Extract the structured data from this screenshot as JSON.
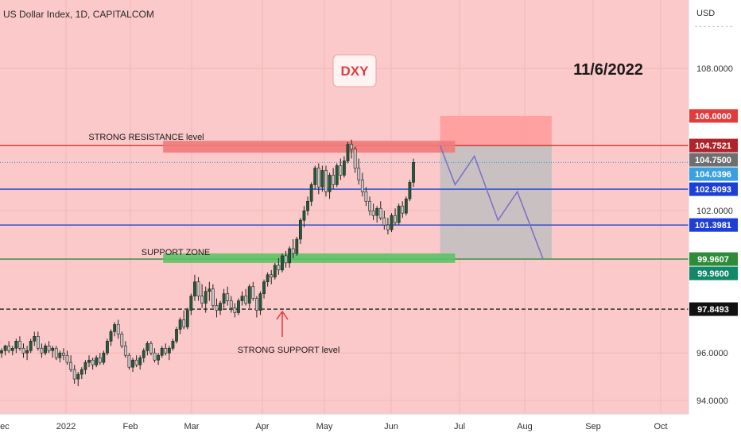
{
  "header": {
    "symbol_title": "US Dollar Index, 1D, CAPITALCOM",
    "currency": "USD"
  },
  "annotations": {
    "ticker_box": "DXY",
    "date_text": "11/6/2022",
    "resistance_label": "STRONG RESISTANCE level",
    "support_zone_label": "SUPPORT ZONE",
    "strong_support_label": "STRONG SUPPORT level"
  },
  "colors": {
    "background": "#fbc9c9",
    "bull_candle": "#1f5c3a",
    "bear_candle": "#c9c9c9",
    "resistance_line": "#d0302f",
    "blue_line": "#1e3fd6",
    "green_line": "#2e8b3a",
    "target_box": "#bfbfbf",
    "stop_box": "#ff9a9a",
    "path": "#7e72c8"
  },
  "chart_data": {
    "type": "candlestick",
    "title": "US Dollar Index, 1D, CAPITALCOM",
    "y_axis_unit": "USD",
    "ylim": [
      93.5,
      111
    ],
    "y_ticks": [
      {
        "value": 108,
        "label": "108.0000"
      },
      {
        "value": 102,
        "label": "102.0000"
      },
      {
        "value": 96,
        "label": "96.0000"
      },
      {
        "value": 94,
        "label": "94.0000"
      }
    ],
    "x_ticks": [
      "Dec",
      "2022",
      "Feb",
      "Mar",
      "Apr",
      "May",
      "Jun",
      "Jul",
      "Aug",
      "Sep",
      "Oct"
    ],
    "horizontal_levels": [
      {
        "name": "resistance",
        "value": 104.75,
        "style": "solid",
        "color": "#d0302f"
      },
      {
        "name": "last-price",
        "value": 104.0396,
        "style": "dotted",
        "color": "#3aa0e0"
      },
      {
        "name": "blue-upper",
        "value": 102.9093,
        "style": "solid",
        "color": "#1e3fd6"
      },
      {
        "name": "blue-lower",
        "value": 101.3981,
        "style": "solid",
        "color": "#1e3fd6"
      },
      {
        "name": "support",
        "value": 99.9607,
        "style": "solid",
        "color": "#2e8b3a"
      },
      {
        "name": "black-dashed",
        "value": 97.8493,
        "style": "dashed",
        "color": "#222222"
      }
    ],
    "price_labels": [
      {
        "label": "106.0000",
        "value": 106.0,
        "bg": "#e23b3b",
        "fg": "#ffffff"
      },
      {
        "label": "104.7521",
        "value": 104.7521,
        "bg": "#b0232a",
        "fg": "#ffffff"
      },
      {
        "label": "104.7500",
        "value": 104.75,
        "bg": "#6f6f6f",
        "fg": "#ffffff"
      },
      {
        "label": "104.0396",
        "value": 104.0396,
        "bg": "#3aa0e0",
        "fg": "#ffffff"
      },
      {
        "label": "102.9093",
        "value": 102.9093,
        "bg": "#1e3fd6",
        "fg": "#ffffff"
      },
      {
        "label": "101.3981",
        "value": 101.3981,
        "bg": "#1e3fd6",
        "fg": "#ffffff"
      },
      {
        "label": "99.9607",
        "value": 99.9607,
        "bg": "#2e8b3a",
        "fg": "#ffffff"
      },
      {
        "label": "99.9600",
        "value": 99.96,
        "bg": "#13876a",
        "fg": "#ffffff"
      },
      {
        "label": "97.8493",
        "value": 97.8493,
        "bg": "#111111",
        "fg": "#ffffff"
      }
    ],
    "zones": [
      {
        "name": "resistance-zone",
        "from_day": 76,
        "to_day": 212,
        "low": 104.45,
        "high": 104.95,
        "color": "#f07a7a"
      },
      {
        "name": "support-zone",
        "from_day": 76,
        "to_day": 212,
        "low": 99.8,
        "high": 100.2,
        "color": "#5cc267"
      }
    ],
    "position_box": {
      "from_day": 205,
      "to_day": 257,
      "entry": 104.75,
      "stop": 106.0,
      "target": 99.96
    },
    "projection_path": [
      {
        "day": 205,
        "price": 104.75
      },
      {
        "day": 212,
        "price": 103.1
      },
      {
        "day": 221,
        "price": 104.3
      },
      {
        "day": 232,
        "price": 101.6
      },
      {
        "day": 241,
        "price": 102.8
      },
      {
        "day": 253,
        "price": 99.96
      }
    ],
    "candles": {
      "start_day": 0,
      "note": "OHLC per trading day, day 0 = 2021-11-20",
      "ohlc": [
        [
          96.0,
          96.2,
          95.8,
          96.1
        ],
        [
          96.1,
          96.35,
          95.9,
          96.3
        ],
        [
          96.3,
          96.5,
          96.0,
          96.1
        ],
        [
          96.1,
          96.3,
          95.9,
          96.2
        ],
        [
          96.2,
          96.6,
          96.0,
          96.5
        ],
        [
          96.5,
          96.7,
          96.1,
          96.2
        ],
        [
          96.2,
          96.4,
          95.8,
          96.0
        ],
        [
          96.0,
          96.3,
          95.7,
          96.1
        ],
        [
          96.1,
          96.6,
          96.0,
          96.5
        ],
        [
          96.5,
          96.9,
          96.3,
          96.7
        ],
        [
          96.7,
          96.9,
          96.1,
          96.2
        ],
        [
          96.2,
          96.4,
          95.8,
          96.0
        ],
        [
          96.0,
          96.4,
          95.9,
          96.3
        ],
        [
          96.3,
          96.5,
          96.0,
          96.1
        ],
        [
          96.1,
          96.3,
          95.8,
          96.2
        ],
        [
          96.2,
          96.3,
          95.7,
          95.8
        ],
        [
          95.8,
          96.1,
          95.6,
          96.0
        ],
        [
          96.0,
          96.2,
          95.7,
          95.9
        ],
        [
          95.9,
          96.1,
          95.5,
          95.6
        ],
        [
          95.6,
          95.9,
          95.2,
          95.3
        ],
        [
          95.3,
          95.5,
          94.7,
          94.9
        ],
        [
          94.9,
          95.2,
          94.6,
          95.1
        ],
        [
          95.1,
          95.4,
          94.9,
          95.3
        ],
        [
          95.3,
          95.7,
          95.1,
          95.6
        ],
        [
          95.6,
          95.9,
          95.4,
          95.7
        ],
        [
          95.7,
          95.8,
          95.3,
          95.5
        ],
        [
          95.5,
          95.9,
          95.4,
          95.8
        ],
        [
          95.8,
          96.0,
          95.5,
          95.6
        ],
        [
          95.6,
          96.1,
          95.5,
          96.0
        ],
        [
          96.0,
          96.6,
          95.9,
          96.5
        ],
        [
          96.5,
          97.0,
          96.3,
          96.9
        ],
        [
          96.9,
          97.3,
          96.7,
          97.2
        ],
        [
          97.2,
          97.4,
          96.6,
          96.8
        ],
        [
          96.8,
          96.9,
          96.2,
          96.3
        ],
        [
          96.3,
          96.5,
          95.8,
          95.9
        ],
        [
          95.9,
          96.0,
          95.3,
          95.4
        ],
        [
          95.4,
          95.8,
          95.2,
          95.7
        ],
        [
          95.7,
          95.9,
          95.4,
          95.5
        ],
        [
          95.5,
          95.9,
          95.3,
          95.8
        ],
        [
          95.8,
          96.2,
          95.6,
          96.1
        ],
        [
          96.1,
          96.5,
          95.9,
          96.4
        ],
        [
          96.4,
          96.5,
          95.9,
          96.0
        ],
        [
          96.0,
          96.2,
          95.6,
          95.7
        ],
        [
          95.7,
          96.0,
          95.5,
          95.9
        ],
        [
          95.9,
          96.3,
          95.8,
          96.2
        ],
        [
          96.2,
          96.4,
          95.9,
          96.0
        ],
        [
          96.0,
          96.3,
          95.7,
          96.2
        ],
        [
          96.2,
          96.6,
          96.1,
          96.5
        ],
        [
          96.5,
          97.1,
          96.4,
          97.0
        ],
        [
          97.0,
          97.5,
          96.8,
          97.4
        ],
        [
          97.4,
          97.8,
          97.0,
          97.1
        ],
        [
          97.1,
          97.9,
          97.0,
          97.8
        ],
        [
          97.8,
          98.5,
          97.6,
          98.4
        ],
        [
          98.4,
          99.3,
          98.2,
          99.0
        ],
        [
          99.0,
          99.2,
          98.2,
          98.4
        ],
        [
          98.4,
          98.9,
          97.9,
          98.1
        ],
        [
          98.1,
          98.8,
          97.7,
          98.6
        ],
        [
          98.6,
          99.0,
          98.2,
          98.7
        ],
        [
          98.7,
          98.9,
          97.9,
          98.0
        ],
        [
          98.0,
          98.3,
          97.5,
          97.8
        ],
        [
          97.8,
          98.2,
          97.6,
          98.1
        ],
        [
          98.1,
          98.7,
          97.9,
          98.5
        ],
        [
          98.5,
          98.8,
          98.0,
          98.2
        ],
        [
          98.2,
          98.4,
          97.7,
          97.9
        ],
        [
          97.9,
          98.1,
          97.5,
          97.7
        ],
        [
          97.7,
          98.3,
          97.6,
          98.2
        ],
        [
          98.2,
          98.6,
          98.0,
          98.4
        ],
        [
          98.4,
          98.7,
          98.0,
          98.1
        ],
        [
          98.1,
          98.9,
          97.9,
          98.8
        ],
        [
          98.8,
          99.0,
          98.2,
          98.3
        ],
        [
          98.3,
          98.4,
          97.5,
          97.8
        ],
        [
          97.8,
          98.6,
          97.6,
          98.5
        ],
        [
          98.5,
          99.1,
          98.3,
          99.0
        ],
        [
          99.0,
          99.4,
          98.8,
          99.3
        ],
        [
          99.3,
          99.5,
          98.9,
          99.2
        ],
        [
          99.2,
          99.8,
          99.1,
          99.7
        ],
        [
          99.7,
          100.0,
          99.3,
          99.5
        ],
        [
          99.5,
          100.2,
          99.4,
          100.1
        ],
        [
          100.1,
          100.3,
          99.6,
          99.8
        ],
        [
          99.8,
          100.5,
          99.6,
          100.4
        ],
        [
          100.4,
          100.8,
          100.0,
          100.2
        ],
        [
          100.2,
          100.9,
          100.1,
          100.8
        ],
        [
          100.8,
          101.7,
          100.6,
          101.6
        ],
        [
          101.6,
          102.2,
          101.3,
          102.0
        ],
        [
          102.0,
          102.6,
          101.8,
          102.4
        ],
        [
          102.4,
          103.2,
          102.2,
          103.1
        ],
        [
          103.1,
          103.9,
          102.9,
          103.8
        ],
        [
          103.8,
          104.0,
          102.7,
          103.0
        ],
        [
          103.0,
          103.9,
          102.8,
          103.7
        ],
        [
          103.7,
          103.9,
          102.6,
          102.8
        ],
        [
          102.8,
          103.6,
          102.5,
          103.5
        ],
        [
          103.5,
          103.8,
          102.9,
          103.1
        ],
        [
          103.1,
          104.0,
          103.0,
          103.9
        ],
        [
          103.9,
          104.2,
          103.3,
          103.5
        ],
        [
          103.5,
          104.3,
          103.4,
          104.1
        ],
        [
          104.1,
          104.9,
          104.0,
          104.8
        ],
        [
          104.8,
          105.0,
          104.2,
          104.6
        ],
        [
          104.6,
          104.7,
          103.6,
          103.8
        ],
        [
          103.8,
          104.2,
          103.1,
          103.3
        ],
        [
          103.3,
          103.6,
          102.6,
          102.8
        ],
        [
          102.8,
          103.0,
          102.2,
          102.4
        ],
        [
          102.4,
          102.6,
          101.8,
          102.0
        ],
        [
          102.0,
          102.3,
          101.6,
          101.8
        ],
        [
          101.8,
          102.2,
          101.5,
          102.1
        ],
        [
          102.1,
          102.4,
          101.6,
          101.7
        ],
        [
          101.7,
          102.0,
          101.2,
          101.4
        ],
        [
          101.4,
          101.7,
          101.0,
          101.2
        ],
        [
          101.2,
          101.9,
          101.1,
          101.8
        ],
        [
          101.8,
          102.1,
          101.4,
          101.5
        ],
        [
          101.5,
          102.3,
          101.4,
          102.2
        ],
        [
          102.2,
          102.4,
          101.7,
          101.9
        ],
        [
          101.9,
          102.6,
          101.8,
          102.5
        ],
        [
          102.5,
          103.3,
          102.4,
          103.2
        ],
        [
          103.2,
          104.2,
          103.0,
          104.04
        ]
      ]
    }
  }
}
